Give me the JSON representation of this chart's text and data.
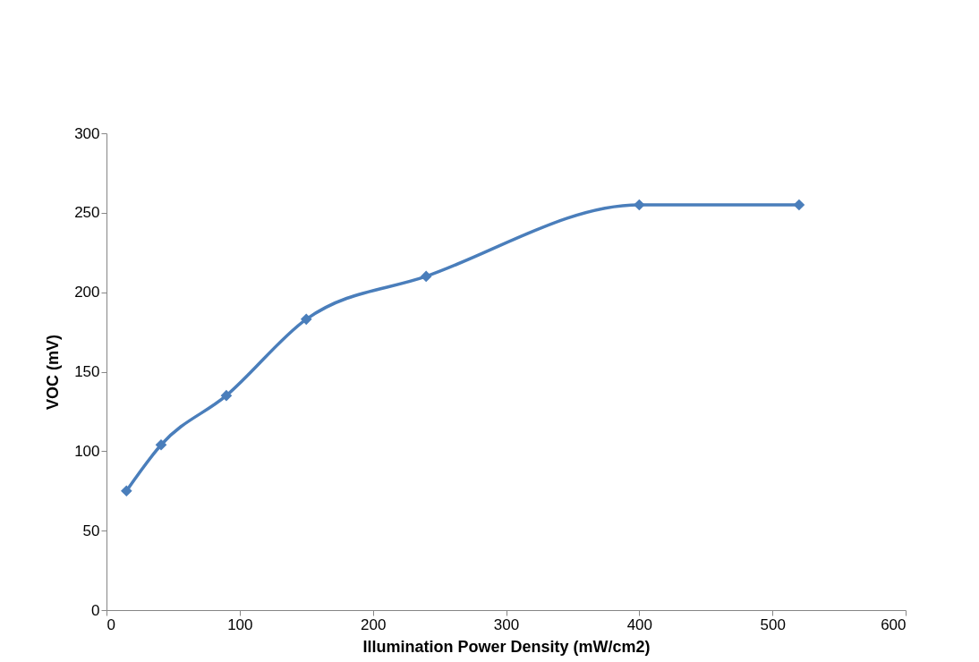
{
  "chart_data": {
    "type": "line",
    "xlabel": "Illumination Power Density (mW/cm2)",
    "ylabel": "VOC (mV)",
    "x": [
      15,
      41,
      90,
      150,
      240,
      400,
      520
    ],
    "series": [
      {
        "color": "#4a7ebb",
        "values": [
          75,
          104,
          135,
          183,
          210,
          255,
          255
        ]
      }
    ],
    "xlim": [
      0,
      600
    ],
    "xticks": [
      0,
      100,
      200,
      300,
      400,
      500,
      600
    ],
    "ylim": [
      0,
      300
    ],
    "yticks": [
      0,
      50,
      100,
      150,
      200,
      250,
      300
    ],
    "marker": "diamond",
    "line_style": "solid",
    "grid": false
  }
}
